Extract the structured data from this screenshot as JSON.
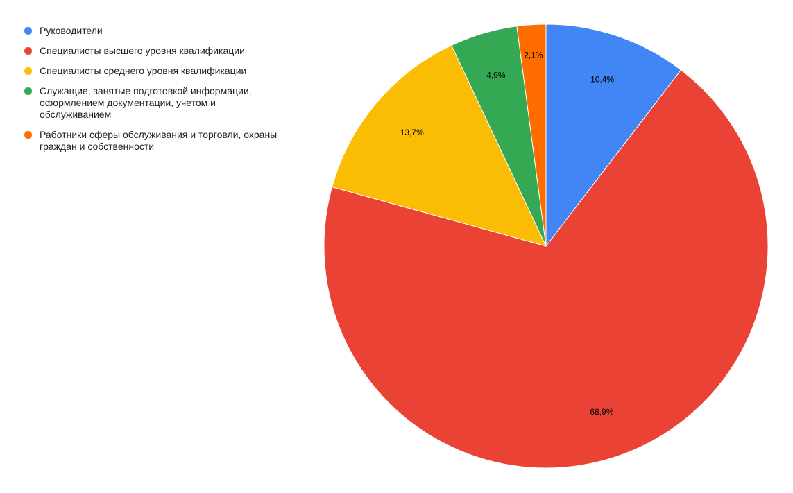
{
  "chart_data": {
    "type": "pie",
    "title": "",
    "categories": [
      "Руководители",
      "Специалисты высшего уровня квалификации",
      "Специалисты среднего уровня квалификации",
      "Служащие, занятые подготовкой информации, оформлением документации, учетом и обслуживанием",
      "Работники сферы обслуживания и торговли, охраны граждан и собственности"
    ],
    "values": [
      10.4,
      68.9,
      13.7,
      4.9,
      2.1
    ],
    "value_labels": [
      "10,4%",
      "68,9%",
      "13,7%",
      "4,9%",
      "2,1%"
    ],
    "colors": [
      "#4285F4",
      "#EA4335",
      "#FBBC04",
      "#34A853",
      "#FF6D01"
    ],
    "legend_position": "top-left",
    "start_angle": "top",
    "direction": "clockwise"
  }
}
